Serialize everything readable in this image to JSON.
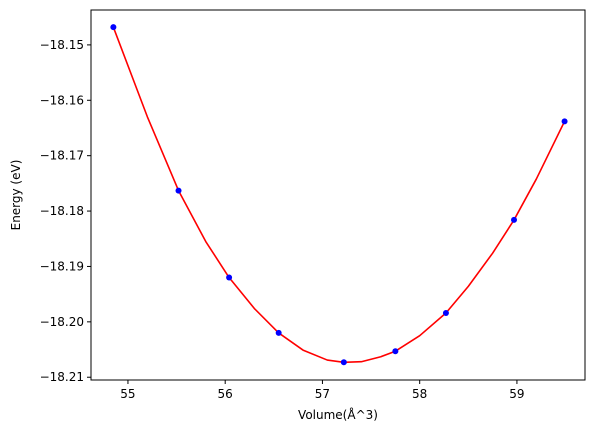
{
  "chart_data": {
    "type": "scatter",
    "title": "",
    "xlabel": "Volume(Å^3)",
    "ylabel": "Energy (eV)",
    "xlim": [
      54.62,
      59.7
    ],
    "ylim": [
      -18.2105,
      -18.1437
    ],
    "xticks": [
      55,
      56,
      57,
      58,
      59
    ],
    "xtick_labels": [
      "55",
      "56",
      "57",
      "58",
      "59"
    ],
    "yticks": [
      -18.15,
      -18.16,
      -18.17,
      -18.18,
      -18.19,
      -18.2,
      -18.21
    ],
    "ytick_labels": [
      "−18.15",
      "−18.16",
      "−18.17",
      "−18.18",
      "−18.19",
      "−18.20",
      "−18.21"
    ],
    "grid": false,
    "legend": "none",
    "series": [
      {
        "kind": "points",
        "color": "#0000ff",
        "points": [
          {
            "x": 54.85,
            "y": -18.1468
          },
          {
            "x": 55.52,
            "y": -18.1763
          },
          {
            "x": 56.04,
            "y": -18.192
          },
          {
            "x": 56.55,
            "y": -18.202
          },
          {
            "x": 57.22,
            "y": -18.2073
          },
          {
            "x": 57.75,
            "y": -18.2053
          },
          {
            "x": 58.27,
            "y": -18.1984
          },
          {
            "x": 58.97,
            "y": -18.1816
          },
          {
            "x": 59.49,
            "y": -18.1638
          }
        ]
      },
      {
        "kind": "fit-curve",
        "color": "#ff0000",
        "points": [
          {
            "x": 54.85,
            "y": -18.1468
          },
          {
            "x": 55.2,
            "y": -18.163
          },
          {
            "x": 55.52,
            "y": -18.1763
          },
          {
            "x": 55.8,
            "y": -18.1855
          },
          {
            "x": 56.04,
            "y": -18.192
          },
          {
            "x": 56.3,
            "y": -18.1976
          },
          {
            "x": 56.55,
            "y": -18.202
          },
          {
            "x": 56.8,
            "y": -18.2051
          },
          {
            "x": 57.05,
            "y": -18.2069
          },
          {
            "x": 57.22,
            "y": -18.2073
          },
          {
            "x": 57.4,
            "y": -18.2072
          },
          {
            "x": 57.6,
            "y": -18.2063
          },
          {
            "x": 57.75,
            "y": -18.2053
          },
          {
            "x": 58.0,
            "y": -18.2025
          },
          {
            "x": 58.27,
            "y": -18.1984
          },
          {
            "x": 58.5,
            "y": -18.1936
          },
          {
            "x": 58.75,
            "y": -18.1876
          },
          {
            "x": 58.97,
            "y": -18.1816
          },
          {
            "x": 59.2,
            "y": -18.1742
          },
          {
            "x": 59.49,
            "y": -18.1638
          }
        ]
      }
    ]
  }
}
